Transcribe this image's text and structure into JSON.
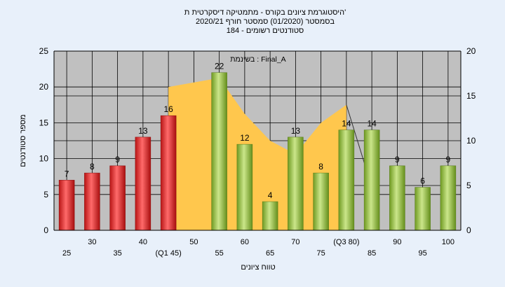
{
  "chart_data": {
    "type": "bar",
    "title_lines": [
      "היסטוגרמת ציונים בקורס - מתמטיקה דיסקרטית ת'",
      "בסמסטר  (01/2020)  סמסטר חורף  2020/21",
      "סטודנטים רשומים - 184"
    ],
    "xlabel": "טווח ציונים",
    "ylabel": "מספר סטודנטים",
    "ylim": [
      0,
      25
    ],
    "y_ticks": [
      0,
      5,
      10,
      15,
      20,
      25
    ],
    "y2lim": [
      0,
      20
    ],
    "y2_ticks": [
      0,
      5,
      10,
      15,
      20
    ],
    "grid": true,
    "categories": [
      "25",
      "30",
      "35",
      "40",
      "(Q1 45)",
      "50",
      "55",
      "60",
      "65",
      "70",
      "75",
      "(Q3 80)",
      "85",
      "90",
      "95",
      "100"
    ],
    "values": [
      7,
      8,
      9,
      13,
      16,
      0,
      22,
      12,
      4,
      13,
      8,
      14,
      14,
      9,
      6,
      9
    ],
    "data_labels": [
      "7",
      "8",
      "9",
      "13",
      "16",
      "",
      "22",
      "12",
      "4",
      "13",
      "8",
      "14",
      "14",
      "9",
      "6",
      "9"
    ],
    "bar_colors": [
      "#e83a3a",
      "#e83a3a",
      "#e83a3a",
      "#e83a3a",
      "#e83a3a",
      "#e83a3a",
      "#9cc63e",
      "#9cc63e",
      "#9cc63e",
      "#9cc63e",
      "#9cc63e",
      "#9cc63e",
      "#9cc63e",
      "#9cc63e",
      "#9cc63e",
      "#9cc63e"
    ],
    "area_series": {
      "name": "בשינמת : Final_A",
      "color": "#ffc74d",
      "x": [
        "(Q1 45)",
        "55",
        "60",
        "65",
        "70",
        "75",
        "(Q3 80)"
      ],
      "y": [
        16,
        17,
        13,
        10,
        8.5,
        12,
        14
      ]
    },
    "line_segment": {
      "x": [
        "(Q3 80)",
        "85"
      ],
      "y": [
        14,
        4.8
      ]
    },
    "colors": {
      "background": "#e8f0fa",
      "plot": "#c0c0c0",
      "grid": "#000000"
    }
  }
}
